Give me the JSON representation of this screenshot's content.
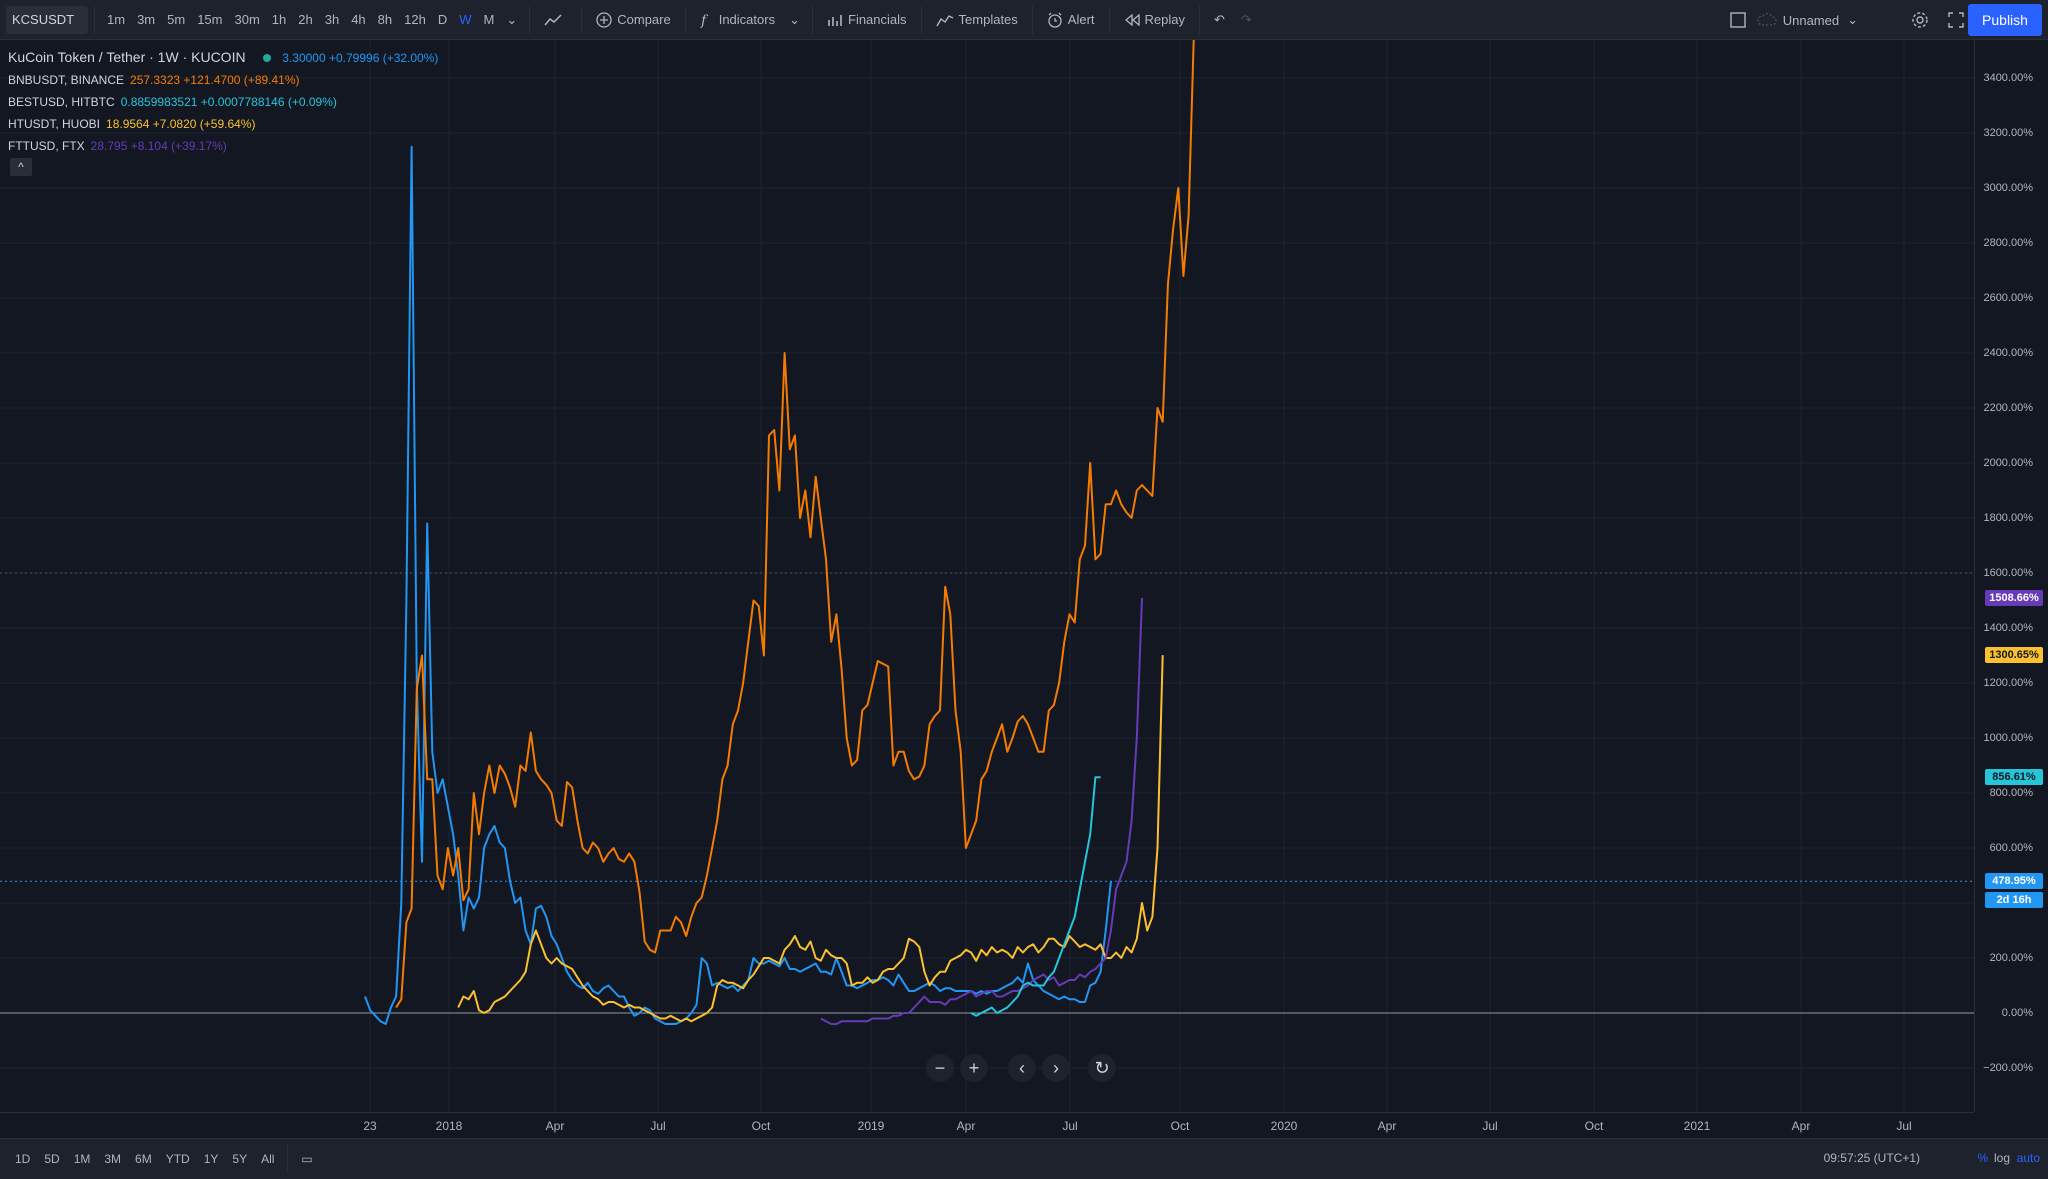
{
  "toolbar": {
    "symbol": "KCSUSDT",
    "timeframes": [
      "1m",
      "3m",
      "5m",
      "15m",
      "30m",
      "1h",
      "2h",
      "3h",
      "4h",
      "8h",
      "12h",
      "D",
      "W",
      "M"
    ],
    "active_timeframe": "W",
    "compare": "Compare",
    "indicators": "Indicators",
    "financials": "Financials",
    "templates": "Templates",
    "alert": "Alert",
    "replay": "Replay",
    "layout_name": "Unnamed",
    "publish": "Publish"
  },
  "legend": {
    "main": {
      "title": "KuCoin Token / Tether · 1W · KUCOIN",
      "value": "3.30000 +0.79996 (+32.00%)",
      "color": "#2196f3"
    },
    "rows": [
      {
        "name": "BNBUSDT, BINANCE",
        "value": "257.3323 +121.4700 (+89.41%)",
        "color": "#f57c00"
      },
      {
        "name": "BESTUSD, HITBTC",
        "value": "0.8859983521 +0.0007788146 (+0.09%)",
        "color": "#26c6da"
      },
      {
        "name": "HTUSDT, HUOBI",
        "value": "18.9564 +7.0820 (+59.64%)",
        "color": "#fbc02d"
      },
      {
        "name": "FTTUSD, FTX",
        "value": "28.795 +8.104 (+39.17%)",
        "color": "#673ab7"
      }
    ],
    "collapse": "^"
  },
  "price_axis": {
    "ticks": [
      "3400.00%",
      "3200.00%",
      "3000.00%",
      "2800.00%",
      "2600.00%",
      "2400.00%",
      "2200.00%",
      "2000.00%",
      "1800.00%",
      "1600.00%",
      "1400.00%",
      "1200.00%",
      "1000.00%",
      "800.00%",
      "600.00%",
      "400.00%",
      "200.00%",
      "0.00%",
      "−200.00%"
    ],
    "labels": [
      {
        "text": "1508.66%",
        "value": 1508.66,
        "color": "#673ab7",
        "text_color": "#ffffff"
      },
      {
        "text": "1300.65%",
        "value": 1300.65,
        "color": "#fbc02d",
        "text_color": "#131722"
      },
      {
        "text": "856.61%",
        "value": 856.61,
        "color": "#26c6da",
        "text_color": "#131722"
      },
      {
        "text": "478.95%",
        "value": 478.95,
        "color": "#2196f3",
        "text_color": "#ffffff"
      }
    ],
    "countdown": "2d 16h"
  },
  "time_axis": {
    "ticks": [
      "23",
      "2018",
      "Apr",
      "Jul",
      "Oct",
      "2019",
      "Apr",
      "Jul",
      "Oct",
      "2020",
      "Apr",
      "Jul",
      "Oct",
      "2021",
      "Apr",
      "Jul"
    ]
  },
  "bottombar": {
    "ranges": [
      "1D",
      "5D",
      "1M",
      "3M",
      "6M",
      "YTD",
      "1Y",
      "5Y",
      "All"
    ],
    "clock": "09:57:25 (UTC+1)",
    "percent": "%",
    "log": "log",
    "auto": "auto"
  },
  "chart_data": {
    "type": "line",
    "scale": "percent",
    "ylim": [
      -300,
      3550
    ],
    "x_start": "2017-10-09",
    "x_step_weeks": 1,
    "series": [
      {
        "name": "KCSUSDT",
        "color": "#2196f3",
        "start_week": 0,
        "values": [
          60,
          10,
          -10,
          -30,
          -40,
          20,
          60,
          400,
          1500,
          3150,
          1200,
          550,
          1780,
          950,
          800,
          850,
          750,
          650,
          500,
          300,
          420,
          380,
          420,
          600,
          650,
          680,
          620,
          600,
          480,
          400,
          420,
          300,
          250,
          380,
          390,
          350,
          280,
          250,
          200,
          150,
          120,
          100,
          90,
          110,
          80,
          70,
          90,
          100,
          80,
          60,
          60,
          20,
          -10,
          0,
          20,
          10,
          -20,
          -30,
          -40,
          -40,
          -40,
          -30,
          -20,
          0,
          30,
          200,
          180,
          100,
          110,
          100,
          90,
          100,
          80,
          100,
          120,
          200,
          180,
          180,
          190,
          180,
          170,
          200,
          160,
          160,
          150,
          160,
          170,
          180,
          150,
          150,
          140,
          200,
          150,
          100,
          100,
          90,
          100,
          110,
          120,
          120,
          130,
          120,
          100,
          140,
          110,
          80,
          80,
          90,
          100,
          110,
          100,
          80,
          90,
          90,
          80,
          80,
          80,
          80,
          70,
          80,
          70,
          80,
          80,
          90,
          100,
          110,
          130,
          110,
          180,
          120,
          100,
          80,
          70,
          60,
          50,
          60,
          50,
          50,
          40,
          40,
          100,
          110,
          150,
          300,
          479
        ]
      },
      {
        "name": "BNBUSDT",
        "color": "#f57c00",
        "start_week": 6,
        "values": [
          20,
          50,
          330,
          380,
          1180,
          1300,
          850,
          850,
          500,
          450,
          600,
          500,
          600,
          410,
          450,
          800,
          650,
          800,
          900,
          800,
          900,
          870,
          820,
          750,
          900,
          880,
          1020,
          880,
          850,
          830,
          800,
          700,
          680,
          840,
          820,
          700,
          600,
          580,
          620,
          600,
          550,
          580,
          600,
          560,
          550,
          580,
          550,
          440,
          260,
          230,
          220,
          300,
          300,
          300,
          350,
          330,
          280,
          350,
          400,
          420,
          500,
          600,
          700,
          850,
          900,
          1050,
          1100,
          1200,
          1350,
          1500,
          1480,
          1300,
          2100,
          2120,
          1900,
          2400,
          2050,
          2100,
          1800,
          1900,
          1730,
          1950,
          1800,
          1650,
          1350,
          1450,
          1250,
          1000,
          900,
          920,
          1100,
          1120,
          1200,
          1280,
          1270,
          1260,
          900,
          950,
          950,
          880,
          850,
          860,
          900,
          1050,
          1080,
          1100,
          1550,
          1450,
          1100,
          950,
          600,
          650,
          700,
          850,
          880,
          950,
          1000,
          1050,
          950,
          1000,
          1060,
          1080,
          1050,
          1000,
          950,
          950,
          1100,
          1120,
          1200,
          1350,
          1450,
          1420,
          1650,
          1700,
          2000,
          1650,
          1670,
          1850,
          1850,
          1900,
          1850,
          1820,
          1800,
          1900,
          1920,
          1900,
          1880,
          2200,
          2150,
          2650,
          2850,
          3000,
          2680,
          2900,
          3550
        ]
      },
      {
        "name": "HTUSDT",
        "color": "#fbc02d",
        "start_week": 18,
        "values": [
          20,
          60,
          50,
          80,
          10,
          0,
          10,
          40,
          50,
          60,
          80,
          100,
          120,
          150,
          250,
          300,
          250,
          200,
          180,
          200,
          180,
          170,
          160,
          130,
          100,
          80,
          60,
          50,
          30,
          40,
          40,
          30,
          20,
          30,
          20,
          20,
          10,
          0,
          -10,
          -20,
          -20,
          -10,
          -20,
          -30,
          -20,
          -30,
          -20,
          -10,
          0,
          20,
          100,
          120,
          110,
          110,
          100,
          90,
          120,
          140,
          170,
          200,
          200,
          190,
          180,
          230,
          250,
          280,
          240,
          230,
          260,
          200,
          190,
          230,
          210,
          200,
          200,
          180,
          100,
          110,
          110,
          130,
          110,
          120,
          150,
          160,
          160,
          180,
          200,
          270,
          260,
          240,
          150,
          100,
          130,
          150,
          150,
          190,
          200,
          210,
          230,
          220,
          190,
          230,
          210,
          240,
          220,
          230,
          220,
          200,
          240,
          220,
          240,
          250,
          220,
          240,
          270,
          270,
          250,
          240,
          280,
          260,
          240,
          250,
          240,
          230,
          250,
          200,
          200,
          220,
          200,
          240,
          220,
          270,
          400,
          300,
          350,
          600,
          1301
        ]
      },
      {
        "name": "FTTUSD",
        "color": "#673ab7",
        "start_week": 88,
        "values": [
          -20,
          -30,
          -40,
          -40,
          -30,
          -30,
          -30,
          -30,
          -30,
          -30,
          -20,
          -20,
          -20,
          -20,
          -10,
          -10,
          0,
          0,
          20,
          40,
          60,
          40,
          40,
          40,
          30,
          50,
          50,
          60,
          70,
          80,
          60,
          70,
          80,
          80,
          60,
          60,
          70,
          80,
          80,
          90,
          100,
          120,
          130,
          140,
          120,
          130,
          100,
          110,
          120,
          120,
          140,
          130,
          150,
          160,
          180,
          200,
          300,
          450,
          500,
          550,
          700,
          1000,
          1509
        ]
      },
      {
        "name": "BESTUSD",
        "color": "#26c6da",
        "start_week": 117,
        "values": [
          0,
          -10,
          0,
          10,
          20,
          0,
          10,
          20,
          40,
          60,
          100,
          110,
          100,
          100,
          100,
          130,
          150,
          200,
          250,
          300,
          350,
          450,
          550,
          650,
          857,
          857
        ]
      }
    ]
  }
}
